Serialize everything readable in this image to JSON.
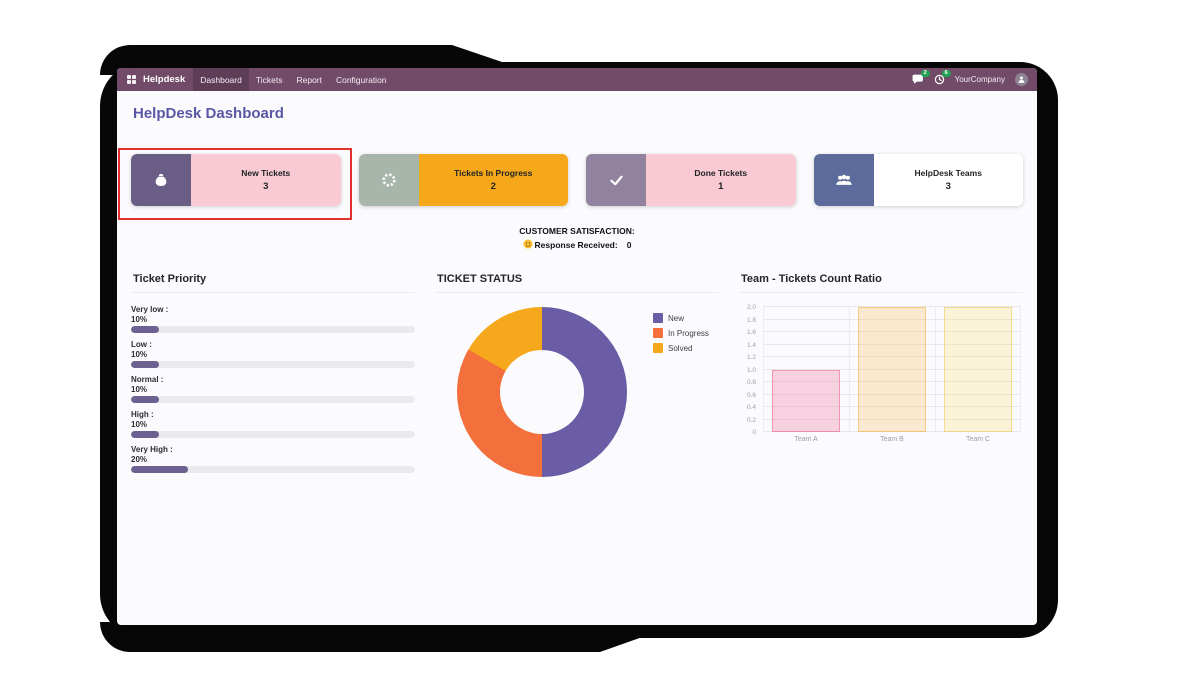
{
  "nav": {
    "brand": "Helpdesk",
    "items": [
      "Dashboard",
      "Tickets",
      "Report",
      "Configuration"
    ],
    "messages_badge": "2",
    "activities_badge": "6",
    "company": "YourCompany"
  },
  "page_title": "HelpDesk Dashboard",
  "cards": [
    {
      "label": "New Tickets",
      "value": "3",
      "icon": "pouch-icon",
      "icon_bg": "#6a5e86",
      "body_bg": "#f9c9d4",
      "highlighted": true
    },
    {
      "label": "Tickets In Progress",
      "value": "2",
      "icon": "gear-spinner-icon",
      "icon_bg": "#a7b5ab",
      "body_bg": "#f5a819",
      "highlighted": false
    },
    {
      "label": "Done Tickets",
      "value": "1",
      "icon": "check-icon",
      "icon_bg": "#91829f",
      "body_bg": "#f9c9d4",
      "highlighted": false
    },
    {
      "label": "HelpDesk Teams",
      "value": "3",
      "icon": "team-icon",
      "icon_bg": "#5d6b9c",
      "body_bg": "#ffffff",
      "highlighted": false
    }
  ],
  "satisfaction": {
    "title": "CUSTOMER SATISFACTION:",
    "icon": "smiley-icon",
    "label": "Response Received:",
    "value": "0"
  },
  "ui": {
    "nav_bg": "#714B67",
    "title_color": "#5a58a5",
    "highlight_color": "#e03131",
    "badge_color": "#23a455"
  },
  "chart_data": [
    {
      "type": "bar",
      "variant": "horizontal_progress",
      "title": "Ticket Priority",
      "categories": [
        "Very low :",
        "Low :",
        "Normal :",
        "High :",
        "Very High :"
      ],
      "value_labels": [
        "10%",
        "10%",
        "10%",
        "10%",
        "20%"
      ],
      "values": [
        10,
        10,
        10,
        10,
        20
      ],
      "xlim": [
        0,
        100
      ],
      "bar_color": "#6d6191",
      "track_color": "#e9e9ee",
      "grid": false
    },
    {
      "type": "pie",
      "variant": "donut",
      "title": "TICKET STATUS",
      "labels": [
        "New",
        "In Progress",
        "Solved"
      ],
      "values": [
        3,
        2,
        1
      ],
      "colors": [
        "#6a5ca5",
        "#f3703c",
        "#f6a81c"
      ],
      "legend_position": "right"
    },
    {
      "type": "bar",
      "title": "Team - Tickets Count Ratio",
      "categories": [
        "Team A",
        "Team B",
        "Team C"
      ],
      "values": [
        1,
        2,
        2
      ],
      "ylim": [
        0,
        2
      ],
      "ytick_step": 0.2,
      "yticks": [
        "0",
        "0.2",
        "0.4",
        "0.6",
        "0.8",
        "1.0",
        "1.2",
        "1.4",
        "1.6",
        "1.8",
        "2.0"
      ],
      "bars": [
        {
          "fill": "rgba(244,143,177,0.38)",
          "border": "rgba(240,98,146,0.55)"
        },
        {
          "fill": "rgba(250,200,120,0.35)",
          "border": "rgba(245,166,35,0.45)"
        },
        {
          "fill": "rgba(250,225,130,0.30)",
          "border": "rgba(235,200,90,0.55)"
        }
      ],
      "grid": true,
      "legend_position": "none"
    }
  ]
}
